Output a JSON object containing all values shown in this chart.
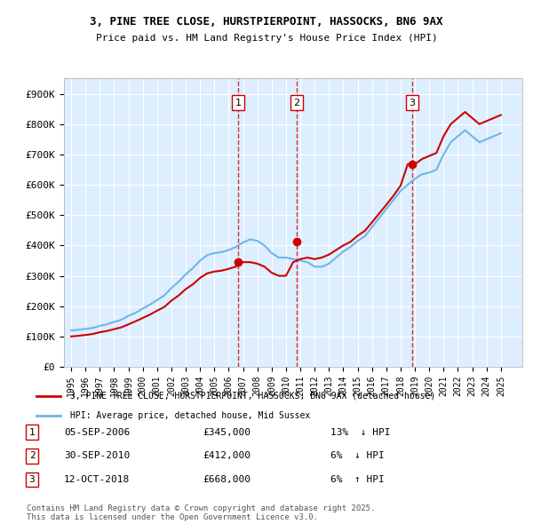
{
  "title1": "3, PINE TREE CLOSE, HURSTPIERPOINT, HASSOCKS, BN6 9AX",
  "title2": "Price paid vs. HM Land Registry's House Price Index (HPI)",
  "ylabel": "",
  "xlabel": "",
  "ylim": [
    0,
    950000
  ],
  "yticks": [
    0,
    100000,
    200000,
    300000,
    400000,
    500000,
    600000,
    700000,
    800000,
    900000
  ],
  "ytick_labels": [
    "£0",
    "£100K",
    "£200K",
    "£300K",
    "£400K",
    "£500K",
    "£600K",
    "£700K",
    "£800K",
    "£900K"
  ],
  "hpi_color": "#6eb6e8",
  "price_color": "#cc0000",
  "bg_color": "#ddeeff",
  "plot_bg": "#ddeeff",
  "marker_color": "#cc0000",
  "vline_color": "#cc0000",
  "legend_label_price": "3, PINE TREE CLOSE, HURSTPIERPOINT, HASSOCKS, BN6 9AX (detached house)",
  "legend_label_hpi": "HPI: Average price, detached house, Mid Sussex",
  "transactions": [
    {
      "label": "1",
      "date": "05-SEP-2006",
      "price": 345000,
      "pct": "13%",
      "dir": "↓"
    },
    {
      "label": "2",
      "date": "30-SEP-2010",
      "price": 412000,
      "pct": "6%",
      "dir": "↓"
    },
    {
      "label": "3",
      "date": "12-OCT-2018",
      "price": 668000,
      "pct": "6%",
      "dir": "↑"
    }
  ],
  "transaction_years": [
    2006.67,
    2010.75,
    2018.79
  ],
  "transaction_prices": [
    345000,
    412000,
    668000
  ],
  "footnote": "Contains HM Land Registry data © Crown copyright and database right 2025.\nThis data is licensed under the Open Government Licence v3.0.",
  "xmin": 1995,
  "xmax": 2026
}
